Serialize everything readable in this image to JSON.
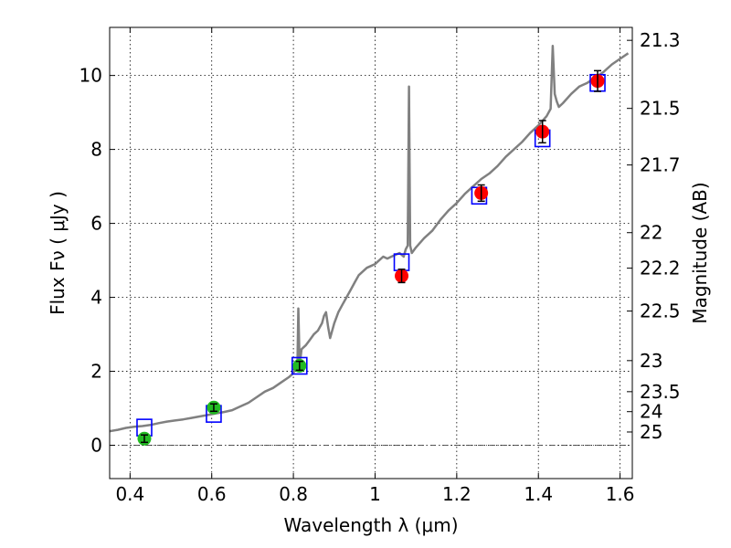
{
  "chart_data": {
    "type": "scatter",
    "title": "",
    "xlabel": "Wavelength  λ (μm)",
    "ylabel_left": "Flux  Fν  ( μJy )",
    "ylabel_right": "Magnitude (AB)",
    "xlim": [
      0.35,
      1.63
    ],
    "ylim": [
      -0.9,
      11.3
    ],
    "grid": true,
    "x_ticks": [
      0.4,
      0.6,
      0.8,
      1.0,
      1.2,
      1.4,
      1.6
    ],
    "x_tick_labels": [
      "0.4",
      "0.6",
      "0.8",
      "1",
      "1.2",
      "1.4",
      "1.6"
    ],
    "y_ticks": [
      0,
      2,
      4,
      6,
      8,
      10
    ],
    "y_tick_labels": [
      "0",
      "2",
      "4",
      "6",
      "8",
      "10"
    ],
    "right_axis_ticks": [
      {
        "label": "21.3",
        "flux": 10.95
      },
      {
        "label": "21.5",
        "flux": 9.11
      },
      {
        "label": "21.7",
        "flux": 7.58
      },
      {
        "label": "22",
        "flux": 5.75
      },
      {
        "label": "22.2",
        "flux": 4.79
      },
      {
        "label": "22.5",
        "flux": 3.63
      },
      {
        "label": "23",
        "flux": 2.29
      },
      {
        "label": "23.5",
        "flux": 1.45
      },
      {
        "label": "24",
        "flux": 0.91
      },
      {
        "label": "25",
        "flux": 0.36
      }
    ],
    "series": [
      {
        "name": "model_spectrum",
        "style": "line",
        "color": "#808080",
        "x": [
          0.35,
          0.37,
          0.39,
          0.41,
          0.43,
          0.45,
          0.47,
          0.49,
          0.51,
          0.53,
          0.55,
          0.57,
          0.59,
          0.61,
          0.63,
          0.65,
          0.67,
          0.69,
          0.71,
          0.73,
          0.75,
          0.77,
          0.79,
          0.8,
          0.805,
          0.81,
          0.812,
          0.815,
          0.818,
          0.82,
          0.83,
          0.84,
          0.85,
          0.86,
          0.87,
          0.875,
          0.88,
          0.885,
          0.89,
          0.9,
          0.91,
          0.92,
          0.93,
          0.94,
          0.95,
          0.96,
          0.97,
          0.98,
          0.99,
          1.0,
          1.01,
          1.02,
          1.03,
          1.04,
          1.05,
          1.06,
          1.07,
          1.075,
          1.08,
          1.083,
          1.086,
          1.09,
          1.1,
          1.12,
          1.14,
          1.16,
          1.18,
          1.2,
          1.22,
          1.24,
          1.26,
          1.28,
          1.3,
          1.32,
          1.34,
          1.36,
          1.38,
          1.4,
          1.42,
          1.43,
          1.435,
          1.44,
          1.445,
          1.45,
          1.46,
          1.48,
          1.5,
          1.52,
          1.54,
          1.56,
          1.58,
          1.6,
          1.62
        ],
        "y": [
          0.38,
          0.42,
          0.47,
          0.5,
          0.52,
          0.55,
          0.6,
          0.64,
          0.67,
          0.7,
          0.74,
          0.78,
          0.82,
          0.86,
          0.9,
          0.95,
          1.05,
          1.15,
          1.3,
          1.45,
          1.55,
          1.7,
          1.85,
          1.95,
          2.1,
          2.3,
          3.7,
          2.3,
          2.4,
          2.6,
          2.7,
          2.85,
          3.0,
          3.1,
          3.3,
          3.5,
          3.6,
          3.2,
          2.9,
          3.3,
          3.6,
          3.8,
          4.0,
          4.2,
          4.4,
          4.6,
          4.7,
          4.8,
          4.85,
          4.9,
          5.0,
          5.1,
          5.05,
          5.1,
          5.15,
          5.2,
          5.1,
          5.3,
          5.4,
          9.7,
          5.4,
          5.2,
          5.35,
          5.6,
          5.8,
          6.1,
          6.35,
          6.55,
          6.8,
          7.0,
          7.2,
          7.35,
          7.55,
          7.8,
          8.0,
          8.2,
          8.45,
          8.65,
          8.9,
          9.1,
          10.8,
          9.5,
          9.3,
          9.15,
          9.25,
          9.5,
          9.7,
          9.8,
          9.95,
          10.1,
          10.3,
          10.45,
          10.6
        ]
      },
      {
        "name": "model_photometry",
        "style": "open-square",
        "color": "#0000ff",
        "x": [
          0.435,
          0.605,
          0.815,
          1.065,
          1.255,
          1.41,
          1.545
        ],
        "y": [
          0.48,
          0.85,
          2.15,
          4.95,
          6.75,
          8.3,
          9.8
        ]
      },
      {
        "name": "optical_data",
        "style": "filled-circle",
        "color": "#22bb22",
        "x": [
          0.435,
          0.605,
          0.815
        ],
        "y": [
          0.18,
          1.02,
          2.15
        ],
        "yerr": [
          0.1,
          0.1,
          0.12
        ]
      },
      {
        "name": "nir_data",
        "style": "filled-circle",
        "color": "#ff0000",
        "x": [
          1.065,
          1.26,
          1.41,
          1.545
        ],
        "y": [
          4.58,
          6.82,
          8.48,
          9.85
        ],
        "yerr": [
          0.18,
          0.22,
          0.3,
          0.28
        ]
      }
    ]
  }
}
